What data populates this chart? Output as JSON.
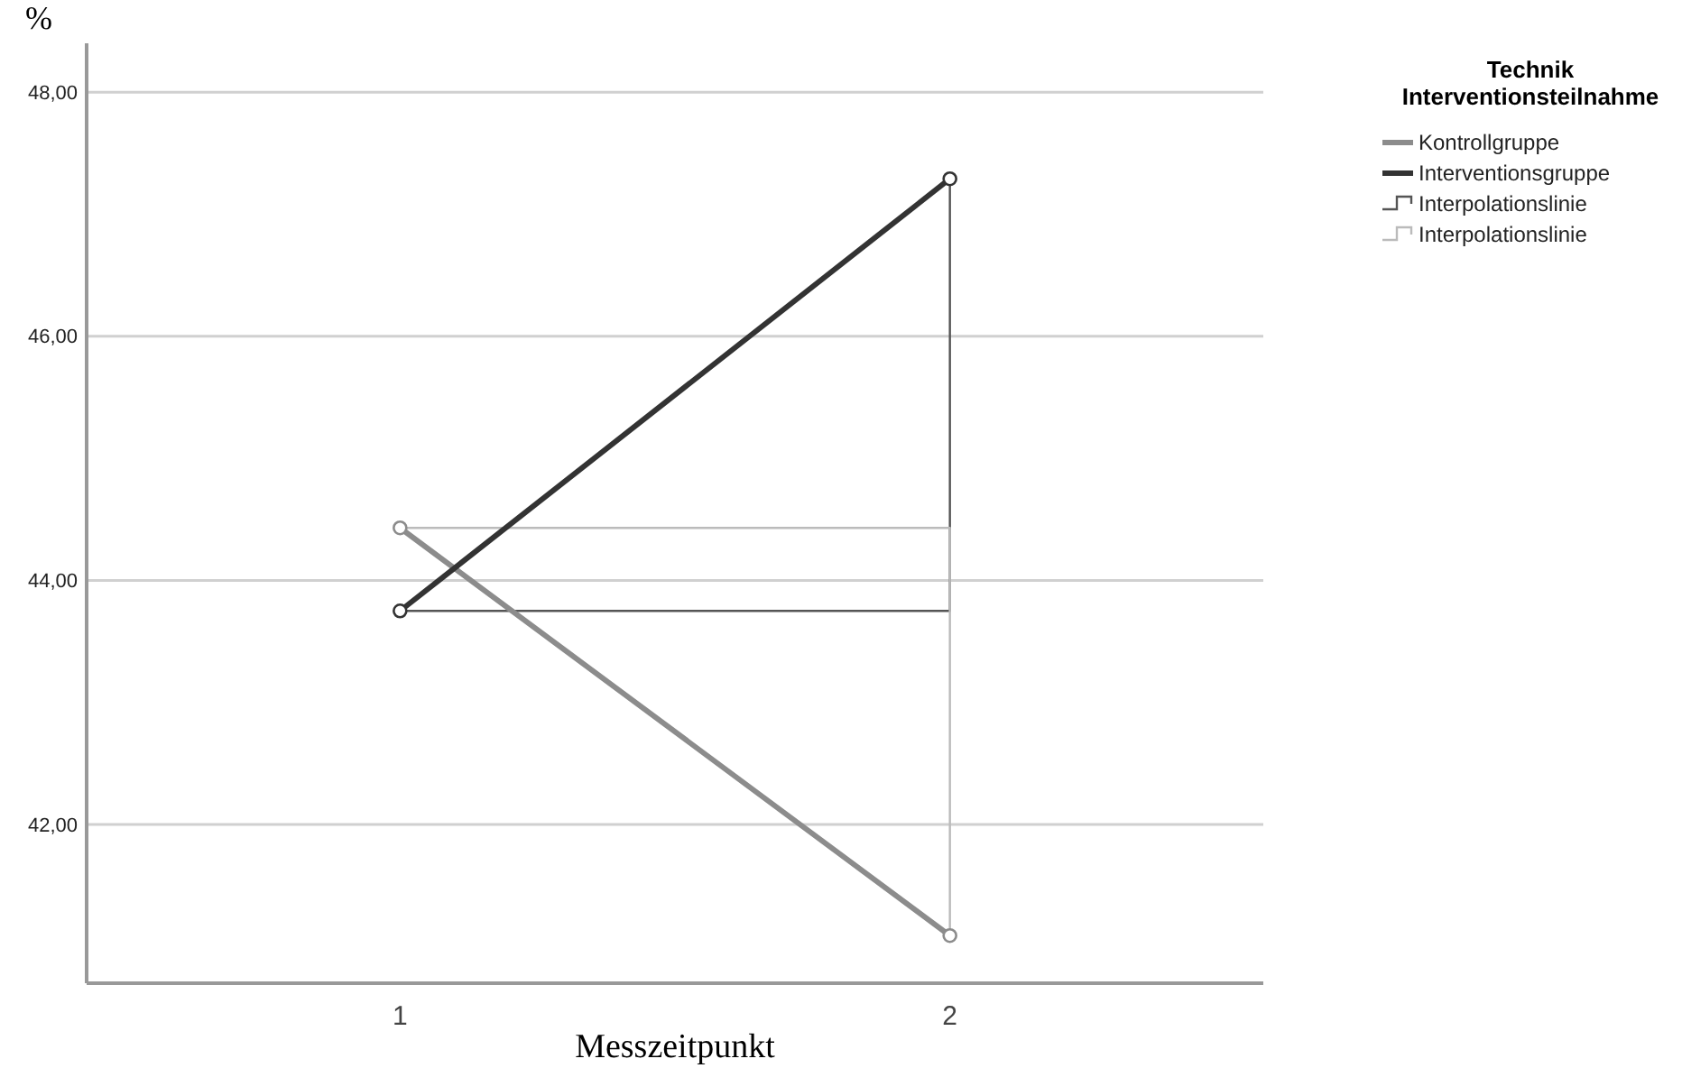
{
  "chart_data": {
    "type": "line",
    "xlabel": "Messzeitpunkt",
    "ylabel": "%",
    "legend_title": "Technik\nInterventionsteilnahme",
    "categories": [
      "1",
      "2"
    ],
    "series": [
      {
        "name": "Kontrollgruppe",
        "color": "#8c8c8c",
        "values": [
          44.43,
          41.09
        ]
      },
      {
        "name": "Interventionsgruppe",
        "color": "#333333",
        "values": [
          43.75,
          47.29
        ]
      },
      {
        "name": "Interpolationslinie",
        "type": "step",
        "marker": "none",
        "color": "#555555",
        "values": [
          43.75,
          47.29
        ]
      },
      {
        "name": "Interpolationslinie",
        "type": "step",
        "marker": "none",
        "color": "#bbbbbb",
        "values": [
          44.43,
          41.09
        ]
      }
    ],
    "ylim": [
      40.7,
      48.4
    ],
    "yticks": [
      {
        "value": 42,
        "label": "42,00"
      },
      {
        "value": 44,
        "label": "44,00"
      },
      {
        "value": 46,
        "label": "46,00"
      },
      {
        "value": 48,
        "label": "48,00"
      }
    ],
    "grid": "y",
    "legend": "top right",
    "marker": "circle",
    "line_style": "solid"
  }
}
